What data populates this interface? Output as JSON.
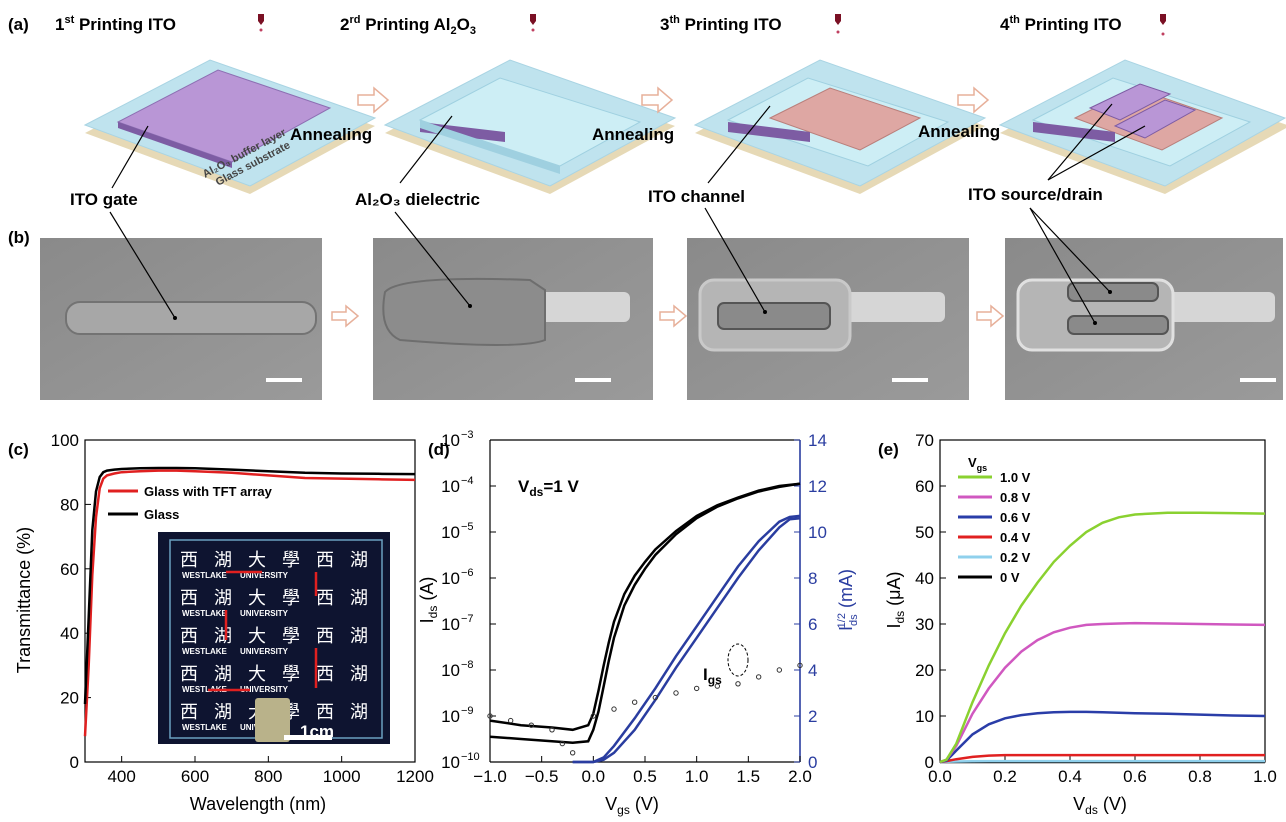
{
  "panel_labels": [
    "(a)",
    "(b)",
    "(c)",
    "(d)",
    "(e)"
  ],
  "panel_a": {
    "titles": [
      {
        "pre": "1",
        "sup": "st",
        "post": " Printing ITO"
      },
      {
        "pre": "2",
        "sup": "rd",
        "post": " Printing Al",
        "sub": "2",
        "post2": "O",
        "sub2": "3"
      },
      {
        "pre": "3",
        "sup": "th",
        "post": " Printing ITO"
      },
      {
        "pre": "4",
        "sup": "th",
        "post": " Printing ITO"
      }
    ],
    "step_label": "Annealing",
    "layer_labels": {
      "buffer": "Al₂O₃ buffer layer",
      "substrate": "Glass substrate"
    },
    "callouts": [
      "ITO gate",
      "Al₂O₃ dielectric",
      "ITO channel",
      "ITO source/drain"
    ],
    "colors": {
      "substrate": "#bfe3ee",
      "gate": "#b996d6",
      "dielectric": "#bfe7f0",
      "channel": "#dea7a3"
    }
  },
  "chart_data": [
    {
      "id": "c",
      "type": "line",
      "xlabel": "Wavelength (nm)",
      "ylabel": "Transmittance (%)",
      "xlim": [
        300,
        1200
      ],
      "ylim": [
        0,
        100
      ],
      "xticks": [
        400,
        600,
        800,
        1000,
        1200
      ],
      "yticks": [
        0,
        20,
        40,
        60,
        80,
        100
      ],
      "series": [
        {
          "name": "Glass with TFT array",
          "color": "#e02020",
          "x": [
            300,
            310,
            320,
            330,
            340,
            350,
            360,
            380,
            400,
            450,
            500,
            550,
            600,
            700,
            800,
            900,
            1000,
            1100,
            1200
          ],
          "y": [
            8,
            30,
            58,
            76,
            85,
            88,
            89,
            89.6,
            90,
            90.3,
            90.5,
            90.5,
            90.3,
            89.8,
            89,
            88.2,
            88,
            87.8,
            87.6
          ]
        },
        {
          "name": "Glass",
          "color": "#000000",
          "x": [
            300,
            310,
            320,
            330,
            340,
            350,
            360,
            380,
            400,
            450,
            500,
            550,
            600,
            700,
            800,
            900,
            1000,
            1100,
            1200
          ],
          "y": [
            18,
            45,
            72,
            84,
            88.5,
            90,
            90.5,
            90.8,
            91,
            91.2,
            91.3,
            91.3,
            91.2,
            90.8,
            90.3,
            89.8,
            89.6,
            89.5,
            89.4
          ]
        }
      ],
      "inset": {
        "rows": [
          [
            "西",
            "湖",
            "大",
            "學",
            "西",
            "湖"
          ],
          [
            "西",
            "湖",
            "大",
            "學",
            "西",
            "湖"
          ],
          [
            "西",
            "湖",
            "大",
            "學",
            "西",
            "湖"
          ],
          [
            "西",
            "湖",
            "大",
            "學",
            "西",
            "湖"
          ],
          [
            "西",
            "湖",
            "大",
            "學",
            "西",
            "湖"
          ]
        ],
        "westlake": "WESTLAKE",
        "university": "UNIVERSITY",
        "scale": "1cm"
      }
    },
    {
      "id": "d",
      "type": "line",
      "annotation": {
        "main": "V",
        "sub": "ds",
        "rest": "=1 V"
      },
      "igs_label": {
        "main": "I",
        "sub": "gs"
      },
      "xlabel": {
        "main": "V",
        "sub": "gs",
        "rest": " (V)"
      },
      "ylabel_left": {
        "main": "I",
        "sub": "ds",
        "rest": " (A)"
      },
      "ylabel_right": {
        "main": "I",
        "sub": "ds",
        "sup": "1/2",
        "rest": " (mA)"
      },
      "xlim": [
        -1.0,
        2.0
      ],
      "ylim_left_log10": [
        -10,
        -3
      ],
      "ylim_right": [
        0,
        14
      ],
      "xticks": [
        "−1.0",
        "−0.5",
        "0.0",
        "0.5",
        "1.0",
        "1.5",
        "2.0"
      ],
      "yticks_left": [
        "10",
        "10",
        "10",
        "10",
        "10",
        "10",
        "10",
        "10"
      ],
      "yticks_left_exp": [
        "−10",
        "−9",
        "−8",
        "−7",
        "−6",
        "−5",
        "−4",
        "−3"
      ],
      "yticks_right": [
        "0",
        "2",
        "4",
        "6",
        "8",
        "10",
        "12",
        "14"
      ],
      "right_axis_color": "#2a3da0",
      "series_log_forward": {
        "x": [
          -1.0,
          -0.7,
          -0.4,
          -0.2,
          -0.05,
          0.0,
          0.05,
          0.1,
          0.15,
          0.2,
          0.3,
          0.4,
          0.5,
          0.6,
          0.8,
          1.0,
          1.2,
          1.4,
          1.6,
          1.8,
          2.0
        ],
        "log10y": [
          -9.45,
          -9.5,
          -9.55,
          -9.58,
          -9.55,
          -9.3,
          -8.9,
          -8.35,
          -7.8,
          -7.3,
          -6.6,
          -6.15,
          -5.8,
          -5.5,
          -5.05,
          -4.7,
          -4.45,
          -4.27,
          -4.12,
          -4.02,
          -3.95
        ]
      },
      "series_log_reverse": {
        "x": [
          -1.0,
          -0.7,
          -0.4,
          -0.2,
          -0.05,
          0.0,
          0.05,
          0.1,
          0.15,
          0.2,
          0.3,
          0.4,
          0.5,
          0.6,
          0.8,
          1.0,
          1.2,
          1.4,
          1.6,
          1.8,
          2.0
        ],
        "log10y": [
          -9.1,
          -9.2,
          -9.25,
          -9.3,
          -9.2,
          -8.95,
          -8.45,
          -7.9,
          -7.4,
          -6.95,
          -6.35,
          -5.95,
          -5.65,
          -5.38,
          -4.98,
          -4.65,
          -4.42,
          -4.25,
          -4.1,
          -4.0,
          -3.95
        ]
      },
      "series_sqrt_forward": {
        "x": [
          -0.2,
          0.0,
          0.1,
          0.2,
          0.4,
          0.6,
          0.8,
          1.0,
          1.2,
          1.4,
          1.6,
          1.8,
          1.9,
          2.0
        ],
        "y": [
          0,
          0,
          0.1,
          0.4,
          1.4,
          2.7,
          4.1,
          5.4,
          6.7,
          8.0,
          9.2,
          10.2,
          10.55,
          10.6
        ]
      },
      "series_sqrt_reverse": {
        "x": [
          -0.2,
          0.0,
          0.1,
          0.2,
          0.4,
          0.6,
          0.8,
          1.0,
          1.2,
          1.4,
          1.6,
          1.8,
          1.9,
          2.0
        ],
        "y": [
          0,
          0,
          0.2,
          0.7,
          1.9,
          3.2,
          4.6,
          5.9,
          7.2,
          8.5,
          9.6,
          10.45,
          10.65,
          10.7
        ]
      },
      "series_igs": {
        "x": [
          -1.0,
          -0.8,
          -0.6,
          -0.4,
          -0.3,
          -0.2,
          0.0,
          0.2,
          0.4,
          0.6,
          0.8,
          1.0,
          1.2,
          1.4,
          1.6,
          1.8,
          2.0
        ],
        "log10y": [
          -9.0,
          -9.1,
          -9.2,
          -9.3,
          -9.6,
          -9.8,
          -9.0,
          -8.85,
          -8.7,
          -8.6,
          -8.5,
          -8.4,
          -8.35,
          -8.3,
          -8.15,
          -8.0,
          -7.9
        ]
      }
    },
    {
      "id": "e",
      "type": "line",
      "xlabel": {
        "main": "V",
        "sub": "ds",
        "rest": " (V)"
      },
      "ylabel": {
        "main": "I",
        "sub": "ds",
        "rest": " (μA)"
      },
      "legend_title": {
        "main": "V",
        "sub": "gs"
      },
      "xlim": [
        0,
        1.0
      ],
      "ylim": [
        0,
        70
      ],
      "xticks": [
        "0.0",
        "0.2",
        "0.4",
        "0.6",
        "0.8",
        "1.0"
      ],
      "yticks": [
        "0",
        "10",
        "20",
        "30",
        "40",
        "50",
        "60",
        "70"
      ],
      "x": [
        0,
        0.02,
        0.05,
        0.1,
        0.15,
        0.2,
        0.25,
        0.3,
        0.35,
        0.4,
        0.45,
        0.5,
        0.55,
        0.6,
        0.7,
        0.8,
        0.9,
        1.0
      ],
      "series": [
        {
          "name": "1.0 V",
          "color": "#8ad130",
          "y": [
            0,
            0.5,
            4,
            13,
            21,
            28,
            34,
            39,
            43.5,
            47,
            50,
            52,
            53.2,
            53.8,
            54.2,
            54.2,
            54.1,
            54.0
          ]
        },
        {
          "name": "0.8 V",
          "color": "#d058c0",
          "y": [
            0,
            0.5,
            3.5,
            10.5,
            16,
            20.5,
            24,
            26.5,
            28.2,
            29.2,
            29.8,
            30.0,
            30.1,
            30.2,
            30.1,
            30.0,
            29.9,
            29.8
          ]
        },
        {
          "name": "0.6 V",
          "color": "#2a3da8",
          "y": [
            0,
            0.3,
            2.5,
            6,
            8.2,
            9.5,
            10.2,
            10.6,
            10.8,
            10.9,
            10.9,
            10.8,
            10.7,
            10.6,
            10.5,
            10.3,
            10.1,
            10.0
          ]
        },
        {
          "name": "0.4 V",
          "color": "#e02020",
          "y": [
            0,
            0.2,
            0.6,
            1.1,
            1.4,
            1.5,
            1.5,
            1.5,
            1.5,
            1.5,
            1.5,
            1.5,
            1.5,
            1.5,
            1.5,
            1.5,
            1.5,
            1.5
          ]
        },
        {
          "name": "0.2 V",
          "color": "#8fd0ec",
          "y": [
            0,
            0.05,
            0.1,
            0.15,
            0.2,
            0.2,
            0.2,
            0.2,
            0.2,
            0.2,
            0.2,
            0.2,
            0.2,
            0.2,
            0.2,
            0.2,
            0.2,
            0.2
          ]
        },
        {
          "name": "0 V",
          "color": "#000000",
          "y": [
            0,
            0,
            0,
            0,
            0,
            0,
            0,
            0,
            0,
            0,
            0,
            0,
            0,
            0,
            0,
            0,
            0,
            0
          ]
        }
      ]
    }
  ]
}
